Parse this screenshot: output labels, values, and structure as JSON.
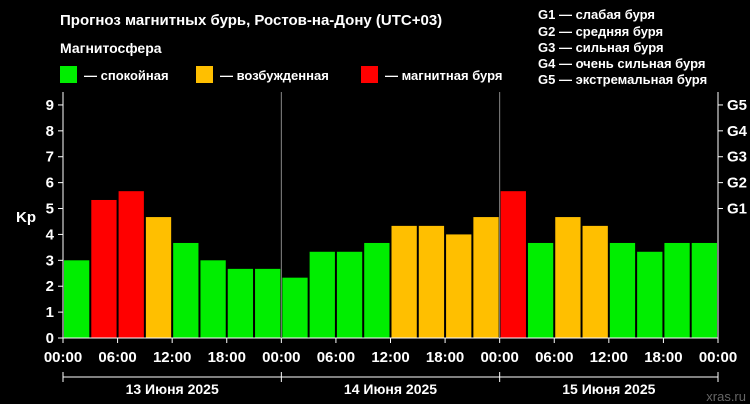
{
  "title": "Прогноз магнитных бурь, Ростов-на-Дону (UTC+03)",
  "legend": {
    "heading": "Магнитосфера",
    "items": [
      {
        "label": "— спокойная",
        "color": "#00ee00"
      },
      {
        "label": "— возбужденная",
        "color": "#ffbf00"
      },
      {
        "label": "— магнитная буря",
        "color": "#ff0000"
      }
    ]
  },
  "g_legend": [
    "G1 — слабая буря",
    "G2 — средняя буря",
    "G3 — сильная буря",
    "G4 — очень сильная буря",
    "G5 — экстремальная буря"
  ],
  "watermark": "xras.ru",
  "chart_data": {
    "type": "bar",
    "ylabel": "Kp",
    "ylim": [
      0,
      9.5
    ],
    "yticks": [
      0,
      1,
      2,
      3,
      4,
      5,
      6,
      7,
      8,
      9
    ],
    "g_scale": [
      {
        "label": "G1",
        "kp": 5
      },
      {
        "label": "G2",
        "kp": 6
      },
      {
        "label": "G3",
        "kp": 7
      },
      {
        "label": "G4",
        "kp": 8
      },
      {
        "label": "G5",
        "kp": 9
      }
    ],
    "xticks": [
      "00:00",
      "06:00",
      "12:00",
      "18:00",
      "00:00",
      "06:00",
      "12:00",
      "18:00",
      "00:00",
      "06:00",
      "12:00",
      "18:00",
      "00:00"
    ],
    "days": [
      "13 Июня 2025",
      "14 Июня 2025",
      "15 Июня 2025"
    ],
    "colors": {
      "quiet": "#00ee00",
      "active": "#ffbf00",
      "storm": "#ff0000"
    },
    "values": [
      3.0,
      5.33,
      5.67,
      4.67,
      3.67,
      3.0,
      2.67,
      2.67,
      2.33,
      3.33,
      3.33,
      3.67,
      4.33,
      4.33,
      4.0,
      4.67,
      5.67,
      3.67,
      4.67,
      4.33,
      3.67,
      3.33,
      3.67,
      3.67
    ],
    "levels": [
      "quiet",
      "storm",
      "storm",
      "active",
      "quiet",
      "quiet",
      "quiet",
      "quiet",
      "quiet",
      "quiet",
      "quiet",
      "quiet",
      "active",
      "active",
      "active",
      "active",
      "storm",
      "quiet",
      "active",
      "active",
      "quiet",
      "quiet",
      "quiet",
      "quiet"
    ]
  }
}
